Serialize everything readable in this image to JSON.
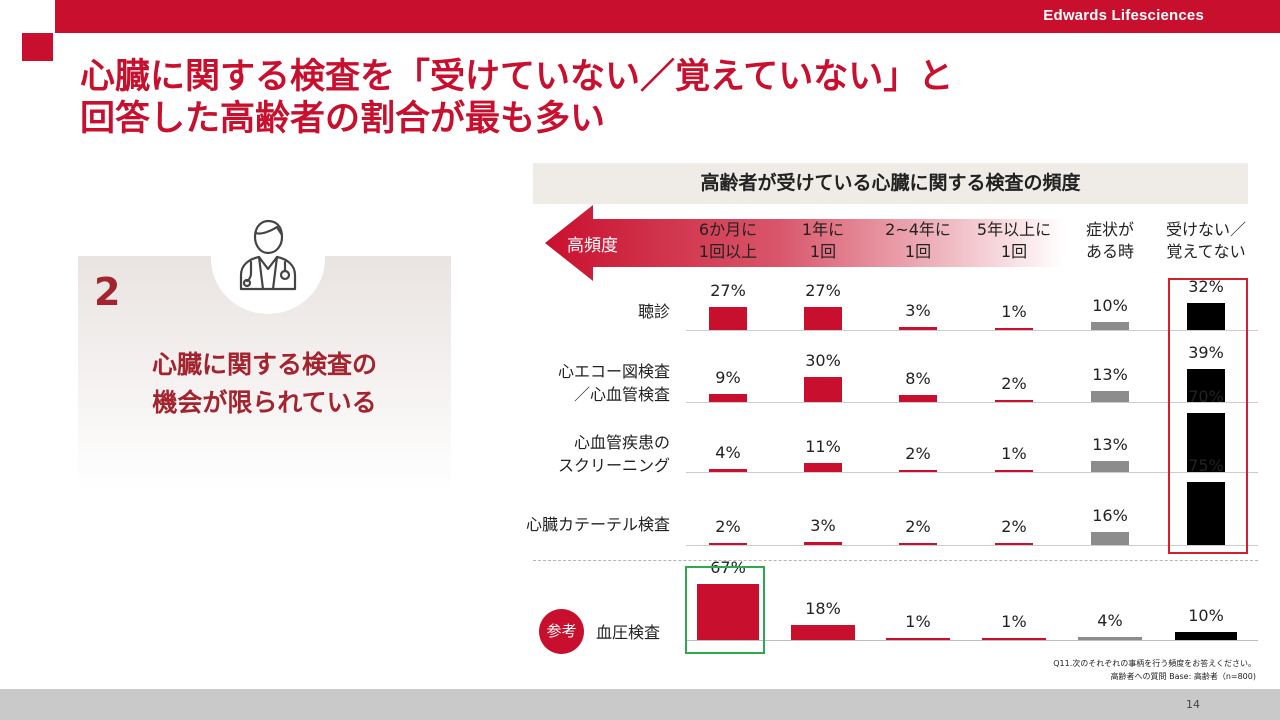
{
  "header": {
    "brand": "Edwards Lifesciences",
    "title_line1": "心臓に関する検査を「受けていない／覚えていない」と",
    "title_line2": "回答した高齢者の割合が最も多い",
    "page_number": "14"
  },
  "card": {
    "number": "2",
    "text_line1": "心臓に関する検査の",
    "text_line2": "機会が限られている",
    "icon": "doctor-icon"
  },
  "chart_data": {
    "type": "bar",
    "title": "高齢者が受けている心臓に関する検査の頻度",
    "arrow_label": "高頻度",
    "categories": [
      [
        "6か月に",
        "1回以上"
      ],
      [
        "1年に",
        "1回"
      ],
      [
        "2~4年に",
        "1回"
      ],
      [
        "5年以上に",
        "1回"
      ],
      [
        "症状が",
        "ある時"
      ],
      [
        "受けない／",
        "覚えてない"
      ]
    ],
    "series": [
      {
        "name_lines": [
          "聴診"
        ],
        "values": [
          27,
          27,
          3,
          1,
          10,
          32
        ]
      },
      {
        "name_lines": [
          "心エコー図検査",
          "／心血管検査"
        ],
        "values": [
          9,
          30,
          8,
          2,
          13,
          39
        ]
      },
      {
        "name_lines": [
          "心血管疾患の",
          "スクリーニング"
        ],
        "values": [
          4,
          11,
          2,
          1,
          13,
          70
        ]
      },
      {
        "name_lines": [
          "心臓カテーテル検査"
        ],
        "values": [
          2,
          3,
          2,
          2,
          16,
          75
        ]
      },
      {
        "name_lines": [
          "血圧検査"
        ],
        "values": [
          67,
          18,
          1,
          1,
          4,
          10
        ],
        "badge": "参考"
      }
    ],
    "unit": "%",
    "colors": {
      "red": "#c8102e",
      "gray": "#8c8c8c",
      "black": "#000000"
    },
    "highlight": {
      "red_box_column": 5,
      "green_box_series": 4,
      "green_box_column": 0
    }
  },
  "footnote": {
    "line1": "Q11.次のそれぞれの事柄を行う頻度をお答えください。",
    "line2": "高齢者への質問  Base: 高齢者（n=800)"
  }
}
